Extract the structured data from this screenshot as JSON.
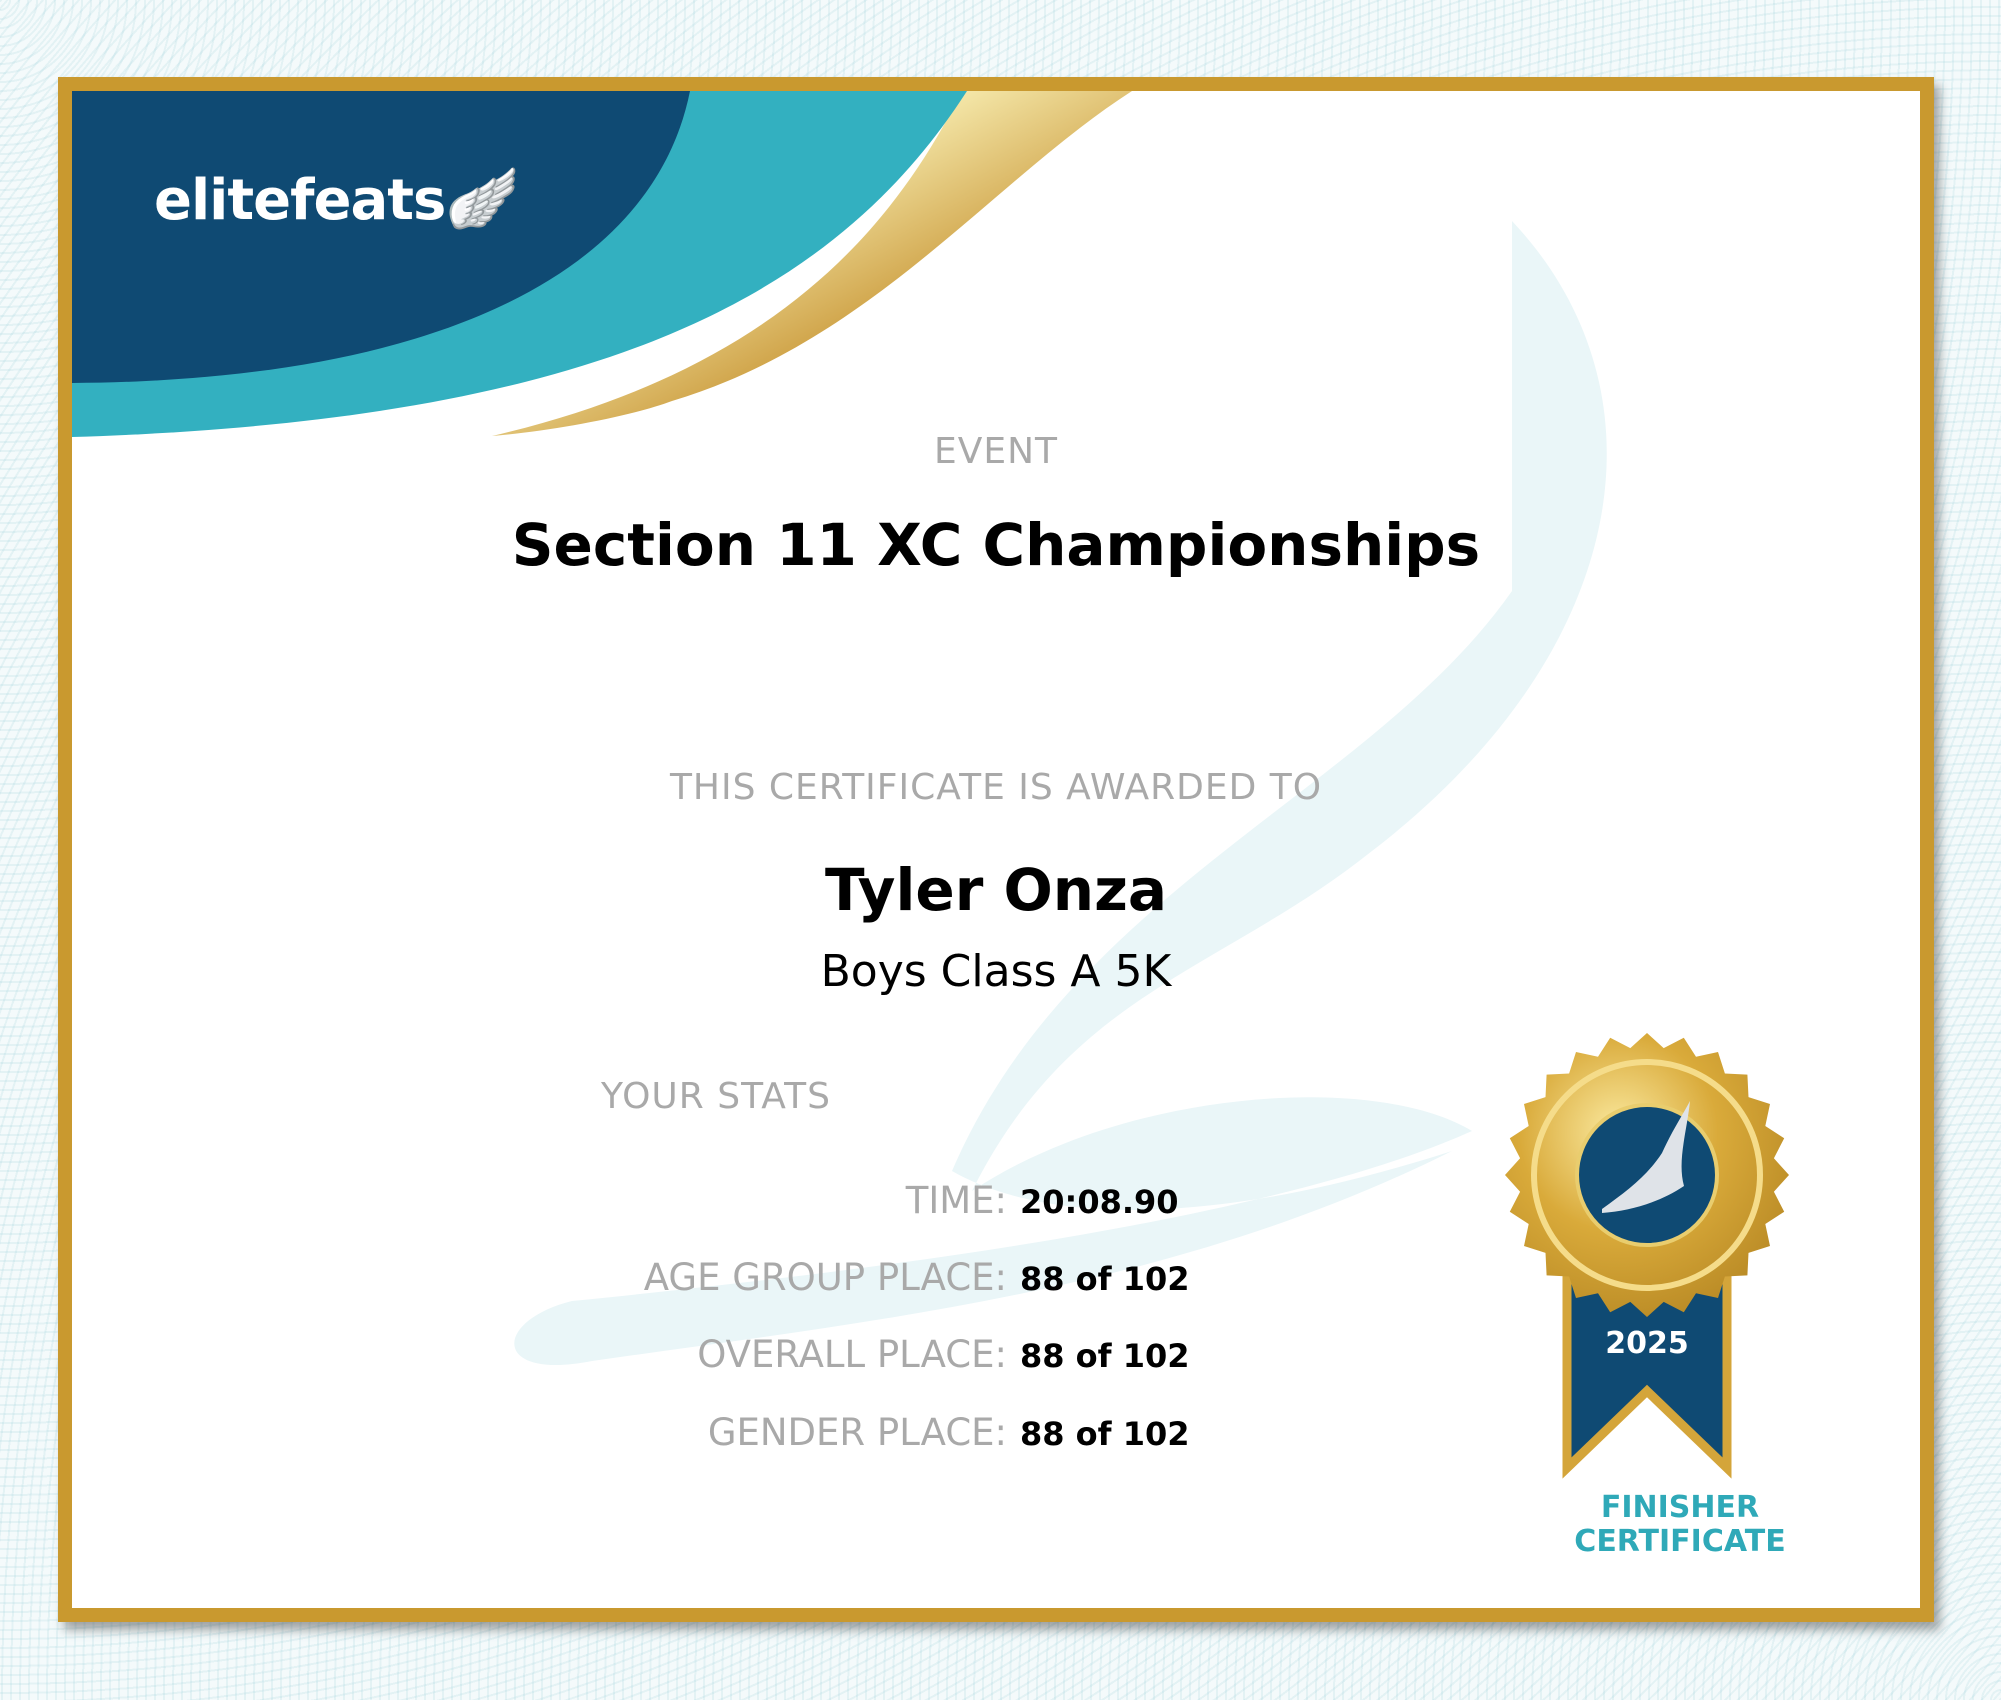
{
  "brand": {
    "logo": "elitefeats",
    "colors": {
      "navy": "#0f4a73",
      "teal": "#33b0c0",
      "gold": "#c9992f"
    }
  },
  "event": {
    "label": "EVENT",
    "name": "Section 11 XC Championships"
  },
  "award": {
    "label": "THIS CERTIFICATE IS AWARDED TO",
    "name": "Tyler Onza",
    "division": "Boys Class A 5K"
  },
  "stats": {
    "label": "YOUR STATS",
    "items": [
      {
        "key": "TIME:",
        "value": "20:08.90"
      },
      {
        "key": "AGE GROUP PLACE:",
        "value": "88 of 102"
      },
      {
        "key": "OVERALL PLACE:",
        "value": "88 of 102"
      },
      {
        "key": "GENDER PLACE:",
        "value": "88 of 102"
      }
    ]
  },
  "badge": {
    "year": "2025",
    "line1": "FINISHER",
    "line2": "CERTIFICATE",
    "icon": "winged-foot-icon"
  }
}
